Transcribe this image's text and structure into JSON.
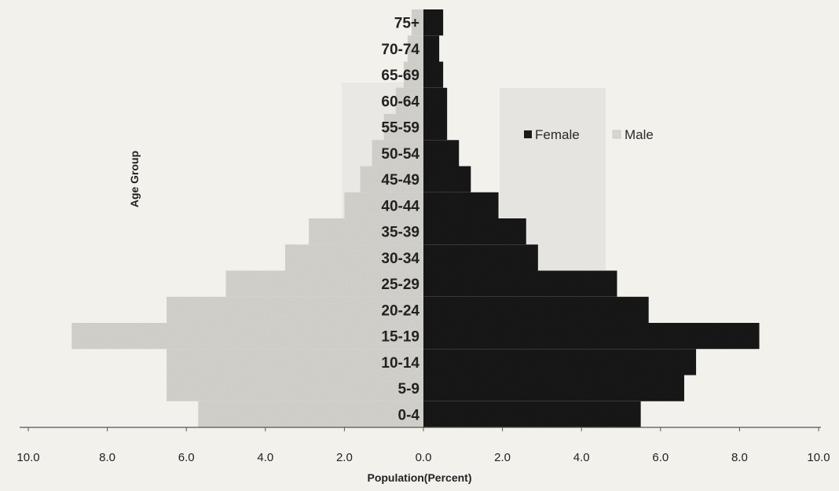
{
  "chart_data": {
    "type": "bar",
    "orientation": "horizontal",
    "categories": [
      "0-4",
      "5-9",
      "10-14",
      "15-19",
      "20-24",
      "25-29",
      "30-34",
      "35-39",
      "40-44",
      "45-49",
      "50-54",
      "55-59",
      "60-64",
      "65-69",
      "70-74",
      "75+"
    ],
    "series": [
      {
        "name": "Female",
        "values": [
          5.5,
          6.6,
          6.9,
          8.5,
          5.7,
          4.9,
          2.9,
          2.6,
          1.9,
          1.2,
          0.9,
          0.6,
          0.6,
          0.5,
          0.4,
          0.5
        ]
      },
      {
        "name": "Male",
        "values": [
          5.7,
          6.5,
          6.5,
          8.9,
          6.5,
          5.0,
          3.5,
          2.9,
          2.0,
          1.6,
          1.3,
          1.0,
          0.7,
          0.5,
          0.4,
          0.3
        ]
      }
    ],
    "xlabel": "Population(Percent)",
    "ylabel": "Age Group",
    "xlim": [
      -10,
      10
    ],
    "xticks": [
      "10.0",
      "8.0",
      "6.0",
      "4.0",
      "2.0",
      "0.0",
      "2.0",
      "4.0",
      "6.0",
      "8.0",
      "10.0"
    ],
    "legend": "right-center",
    "colors": {
      "Female": "#1a1a1a",
      "Male": "#d8d6d0",
      "background": "#f3f1ec"
    }
  }
}
